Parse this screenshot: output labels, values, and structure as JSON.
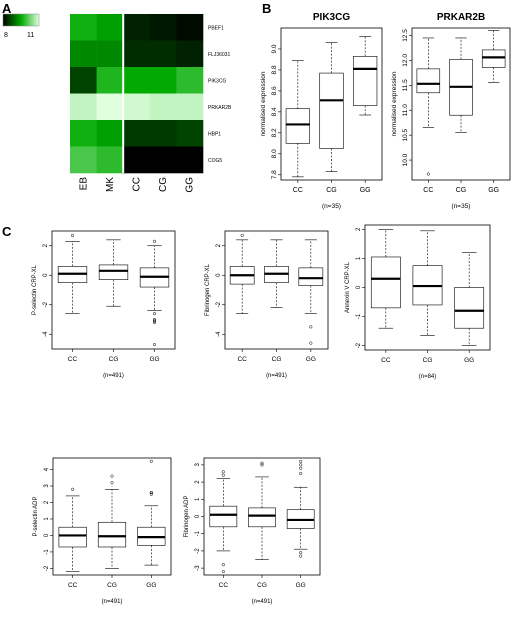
{
  "panels": {
    "A": "A",
    "B": "B",
    "C": "C"
  },
  "heatmap": {
    "colorbar": {
      "min_label": "8",
      "max_label": "11",
      "min_value": 8,
      "max_value": 11
    },
    "columns": [
      "EB",
      "MK",
      "CC",
      "CG",
      "GG"
    ],
    "rows": [
      "PBEF1",
      "FLJ36031",
      "PIK3CG",
      "PRKAR2B",
      "HBP1",
      "COG5"
    ],
    "values": [
      [
        9.6,
        9.4,
        8.3,
        8.2,
        8.1
      ],
      [
        9.2,
        9.2,
        8.4,
        8.4,
        8.3
      ],
      [
        8.6,
        9.7,
        9.5,
        9.5,
        9.8
      ],
      [
        10.8,
        11.0,
        10.9,
        10.8,
        10.8
      ],
      [
        9.6,
        9.4,
        8.5,
        8.5,
        8.6
      ],
      [
        10.0,
        9.8,
        8.0,
        8.0,
        8.0
      ]
    ]
  },
  "chart_data": [
    {
      "type": "box",
      "title": "PIK3CG",
      "xlabel": "(n=35)",
      "ylabel": "normalised expression",
      "categories": [
        "CC",
        "CG",
        "GG"
      ],
      "ylim": [
        7.75,
        9.2
      ],
      "yticks": [
        7.8,
        8.0,
        8.2,
        8.4,
        8.6,
        8.8,
        9.0
      ],
      "ytick_labels": [
        "7.8",
        "8.0",
        "8.2",
        "8.4",
        "8.6",
        "8.8",
        "9.0"
      ],
      "boxes": [
        {
          "whisker_low": 7.78,
          "q1": 8.1,
          "median": 8.28,
          "q3": 8.43,
          "whisker_high": 8.89,
          "outliers": []
        },
        {
          "whisker_low": 7.83,
          "q1": 8.05,
          "median": 8.51,
          "q3": 8.77,
          "whisker_high": 9.06,
          "outliers": []
        },
        {
          "whisker_low": 8.37,
          "q1": 8.46,
          "median": 8.81,
          "q3": 8.93,
          "whisker_high": 9.12,
          "outliers": []
        }
      ]
    },
    {
      "type": "box",
      "title": "PRKAR2B",
      "xlabel": "(n=35)",
      "ylabel": "normalised expression",
      "categories": [
        "CC",
        "CG",
        "GG"
      ],
      "ylim": [
        9.6,
        12.65
      ],
      "yticks": [
        10.0,
        10.5,
        11.0,
        11.5,
        12.0,
        12.5
      ],
      "ytick_labels": [
        "10.0",
        "10.5",
        "11.0",
        "11.5",
        "12.0",
        "12.5"
      ],
      "boxes": [
        {
          "whisker_low": 10.65,
          "q1": 11.35,
          "median": 11.53,
          "q3": 11.83,
          "whisker_high": 12.45,
          "outliers": [
            9.72
          ]
        },
        {
          "whisker_low": 10.55,
          "q1": 10.9,
          "median": 11.47,
          "q3": 12.02,
          "whisker_high": 12.45,
          "outliers": []
        },
        {
          "whisker_low": 11.56,
          "q1": 11.86,
          "median": 12.06,
          "q3": 12.21,
          "whisker_high": 12.6,
          "outliers": []
        }
      ]
    },
    {
      "type": "box",
      "title": "",
      "xlabel": "(n=491)",
      "ylabel": "P-selectin CRP-XL",
      "categories": [
        "CC",
        "CG",
        "GG"
      ],
      "ylim": [
        -5.0,
        3.0
      ],
      "yticks": [
        -4,
        -2,
        0,
        2
      ],
      "ytick_labels": [
        "-4",
        "-2",
        "0",
        "2"
      ],
      "boxes": [
        {
          "whisker_low": -2.6,
          "q1": -0.5,
          "median": 0.1,
          "q3": 0.6,
          "whisker_high": 2.3,
          "outliers": [
            2.7
          ]
        },
        {
          "whisker_low": -2.1,
          "q1": -0.3,
          "median": 0.3,
          "q3": 0.7,
          "whisker_high": 2.4,
          "outliers": []
        },
        {
          "whisker_low": -2.4,
          "q1": -0.8,
          "median": -0.1,
          "q3": 0.5,
          "whisker_high": 2.0,
          "outliers": [
            2.3,
            -2.6,
            -3.0,
            -3.1,
            -3.2,
            -4.7
          ]
        }
      ]
    },
    {
      "type": "box",
      "title": "",
      "xlabel": "(n=491)",
      "ylabel": "Fibrinogen CRP-XL",
      "categories": [
        "CC",
        "CG",
        "GG"
      ],
      "ylim": [
        -5.0,
        3.0
      ],
      "yticks": [
        -4,
        -2,
        0,
        2
      ],
      "ytick_labels": [
        "-4",
        "-2",
        "0",
        "2"
      ],
      "boxes": [
        {
          "whisker_low": -2.6,
          "q1": -0.6,
          "median": 0.0,
          "q3": 0.6,
          "whisker_high": 2.4,
          "outliers": [
            2.7
          ]
        },
        {
          "whisker_low": -2.2,
          "q1": -0.5,
          "median": 0.1,
          "q3": 0.6,
          "whisker_high": 2.4,
          "outliers": []
        },
        {
          "whisker_low": -2.6,
          "q1": -0.7,
          "median": -0.2,
          "q3": 0.5,
          "whisker_high": 2.4,
          "outliers": [
            -3.5,
            -4.6
          ]
        }
      ]
    },
    {
      "type": "box",
      "title": "",
      "xlabel": "(n=84)",
      "ylabel": "Annexin V CRP-XL",
      "categories": [
        "CC",
        "CG",
        "GG"
      ],
      "ylim": [
        -2.15,
        2.15
      ],
      "yticks": [
        -2,
        -1,
        0,
        1,
        2
      ],
      "ytick_labels": [
        "-2",
        "-1",
        "0",
        "1",
        "2"
      ],
      "boxes": [
        {
          "whisker_low": -1.4,
          "q1": -0.7,
          "median": 0.3,
          "q3": 1.05,
          "whisker_high": 2.0,
          "outliers": []
        },
        {
          "whisker_low": -1.65,
          "q1": -0.6,
          "median": 0.05,
          "q3": 0.75,
          "whisker_high": 1.95,
          "outliers": []
        },
        {
          "whisker_low": -2.0,
          "q1": -1.4,
          "median": -0.8,
          "q3": 0.0,
          "whisker_high": 1.2,
          "outliers": []
        }
      ]
    },
    {
      "type": "box",
      "title": "",
      "xlabel": "(n=491)",
      "ylabel": "P-selectin ADP",
      "categories": [
        "CC",
        "CG",
        "GG"
      ],
      "ylim": [
        -2.4,
        4.7
      ],
      "yticks": [
        -2,
        -1,
        0,
        1,
        2,
        3,
        4
      ],
      "ytick_labels": [
        "-2",
        "-1",
        "0",
        "1",
        "2",
        "3",
        "4"
      ],
      "boxes": [
        {
          "whisker_low": -2.2,
          "q1": -0.7,
          "median": 0.0,
          "q3": 0.5,
          "whisker_high": 2.4,
          "outliers": [
            2.8
          ]
        },
        {
          "whisker_low": -2.0,
          "q1": -0.7,
          "median": -0.05,
          "q3": 0.8,
          "whisker_high": 2.8,
          "outliers": [
            3.2,
            3.6
          ]
        },
        {
          "whisker_low": -1.8,
          "q1": -0.6,
          "median": -0.1,
          "q3": 0.5,
          "whisker_high": 1.8,
          "outliers": [
            2.5,
            2.6,
            2.6,
            4.5
          ]
        }
      ]
    },
    {
      "type": "box",
      "title": "",
      "xlabel": "(n=491)",
      "ylabel": "Fibrinogen ADP",
      "categories": [
        "CC",
        "CG",
        "GG"
      ],
      "ylim": [
        -3.4,
        3.4
      ],
      "yticks": [
        -3,
        -2,
        -1,
        0,
        1,
        2,
        3
      ],
      "ytick_labels": [
        "-3",
        "-2",
        "-1",
        "0",
        "1",
        "2",
        "3"
      ],
      "boxes": [
        {
          "whisker_low": -2.0,
          "q1": -0.6,
          "median": 0.1,
          "q3": 0.6,
          "whisker_high": 2.2,
          "outliers": [
            2.4,
            2.6,
            -2.8,
            -3.2
          ]
        },
        {
          "whisker_low": -2.5,
          "q1": -0.6,
          "median": 0.05,
          "q3": 0.5,
          "whisker_high": 2.3,
          "outliers": [
            3.0,
            3.1
          ]
        },
        {
          "whisker_low": -1.9,
          "q1": -0.7,
          "median": -0.2,
          "q3": 0.4,
          "whisker_high": 1.7,
          "outliers": [
            2.5,
            2.8,
            3.0,
            3.2,
            -2.1,
            -2.3
          ]
        }
      ]
    }
  ]
}
